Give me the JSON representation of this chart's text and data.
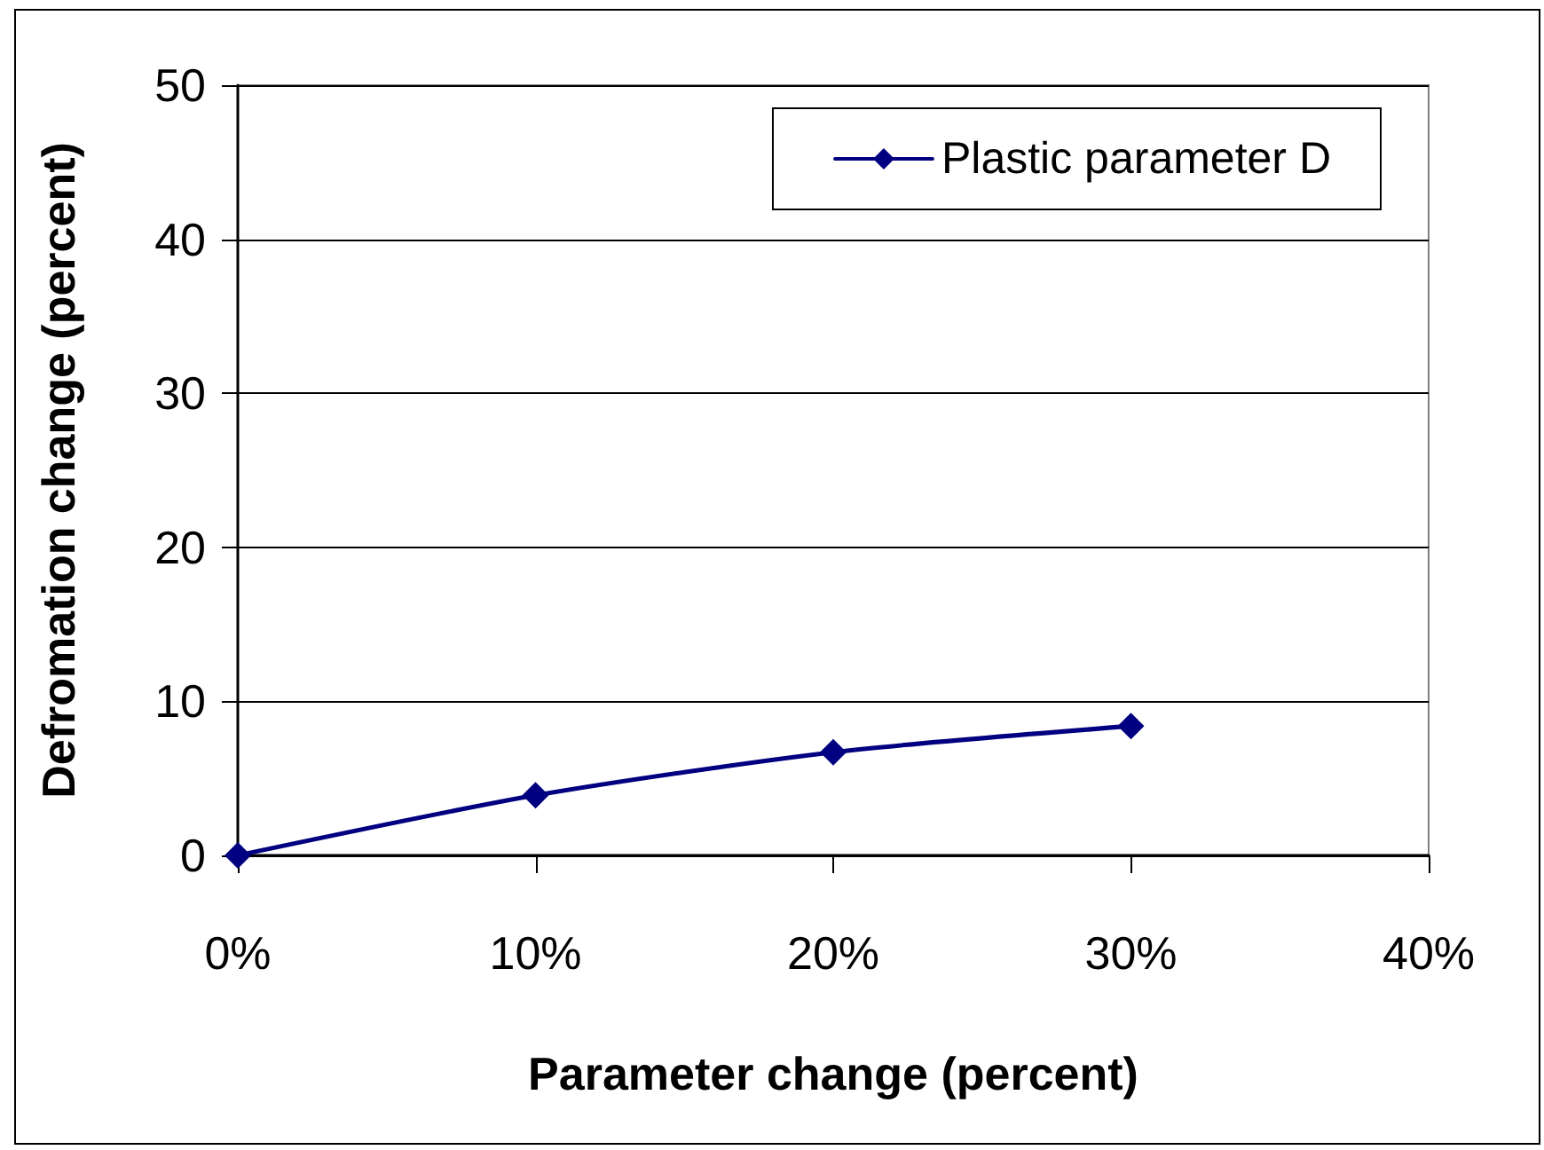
{
  "chart_data": {
    "type": "line",
    "xlabel": "Parameter change (percent)",
    "ylabel": "Defromation change (percent)",
    "x": [
      0,
      10,
      20,
      30
    ],
    "series": [
      {
        "name": "Plastic parameter D",
        "color": "#000080",
        "values": [
          0,
          3.9,
          6.7,
          8.4
        ]
      }
    ],
    "xlim": [
      0,
      40
    ],
    "xticks": [
      {
        "value": 0,
        "label": "0%"
      },
      {
        "value": 10,
        "label": "10%"
      },
      {
        "value": 20,
        "label": "20%"
      },
      {
        "value": 30,
        "label": "30%"
      },
      {
        "value": 40,
        "label": "40%"
      }
    ],
    "ylim": [
      0,
      50
    ],
    "yticks": [
      0,
      10,
      20,
      30,
      40,
      50
    ],
    "grid": "y",
    "legend": "top right",
    "marker": "diamond",
    "line_style": "solid"
  }
}
